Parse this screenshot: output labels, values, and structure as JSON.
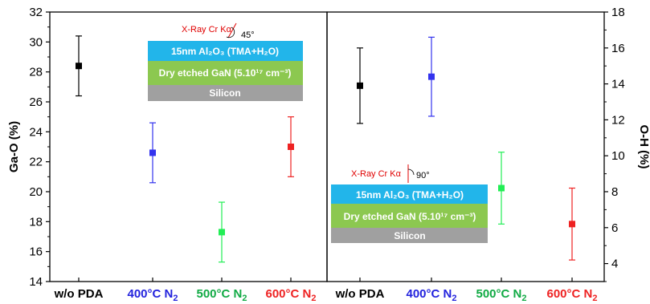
{
  "chart_data": [
    {
      "type": "scatter",
      "panel": "left",
      "categories": [
        "w/o PDA",
        "400°C N2",
        "500°C N2",
        "600°C N2"
      ],
      "values": [
        28.4,
        22.6,
        17.3,
        23.0
      ],
      "errors": [
        2.0,
        2.0,
        2.0,
        2.0
      ],
      "colors": [
        "#000000",
        "#3333ee",
        "#22ee55",
        "#ee2222"
      ],
      "ylabel": "Ga-O (%)",
      "ylim": [
        14,
        32
      ],
      "yticks": [
        "14",
        "16",
        "18",
        "20",
        "22",
        "24",
        "26",
        "28",
        "30",
        "32"
      ],
      "inset": {
        "xray_label": "X-Ray Cr Kα",
        "angle_label": "45°",
        "layer_top": "15nm Al₂O₃ (TMA+H₂O)",
        "layer_mid": "Dry etched GaN (5.10¹⁷ cm⁻³)",
        "layer_bot": "Silicon"
      }
    },
    {
      "type": "scatter",
      "panel": "right",
      "categories": [
        "w/o PDA",
        "400°C N2",
        "500°C N2",
        "600°C N2"
      ],
      "values": [
        13.9,
        14.4,
        8.2,
        6.2
      ],
      "errors": [
        2.1,
        2.2,
        2.0,
        2.0
      ],
      "colors": [
        "#000000",
        "#3333ee",
        "#22ee55",
        "#ee2222"
      ],
      "ylabel": "O-H (%)",
      "ylim": [
        3,
        18
      ],
      "yticks": [
        "4",
        "6",
        "8",
        "10",
        "12",
        "14",
        "16",
        "18"
      ],
      "inset": {
        "xray_label": "X-Ray Cr Kα",
        "angle_label": "90°",
        "layer_top": "15nm Al₂O₃ (TMA+H₂O)",
        "layer_mid": "Dry etched GaN (5.10¹⁷ cm⁻³)",
        "layer_bot": "Silicon"
      }
    }
  ],
  "category_labels": [
    {
      "base": "w/o PDA",
      "sub": "",
      "color": "#000000"
    },
    {
      "base": "400°C N",
      "sub": "2",
      "color": "#2222dd"
    },
    {
      "base": "500°C N",
      "sub": "2",
      "color": "#11aa44"
    },
    {
      "base": "600°C N",
      "sub": "2",
      "color": "#ee2222"
    }
  ],
  "layer_colors": {
    "top": "#22b5ea",
    "mid": "#8cc850",
    "bot": "#a0a0a0"
  }
}
